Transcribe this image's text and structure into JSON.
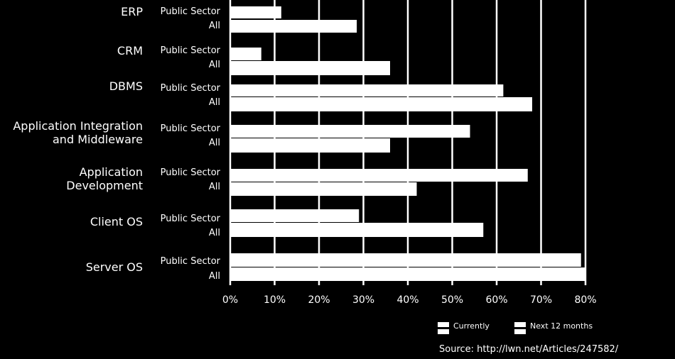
{
  "chart_data": {
    "type": "bar",
    "orientation": "horizontal",
    "categories": [
      "ERP",
      "CRM",
      "DBMS",
      "Application Integration and Middleware",
      "Application Development",
      "Client OS",
      "Server OS"
    ],
    "category_lines": [
      [
        "ERP"
      ],
      [
        "CRM"
      ],
      [
        "DBMS"
      ],
      [
        "Application Integration",
        "and Middleware"
      ],
      [
        "Application",
        "Development"
      ],
      [
        "Client OS"
      ],
      [
        "Server OS"
      ]
    ],
    "sub_labels": [
      "Public Sector",
      "All"
    ],
    "series": [
      {
        "name": "Currently",
        "values": {
          "Public Sector": [
            0,
            7,
            61.5,
            54,
            67,
            29,
            79
          ],
          "All": [
            0,
            0,
            0,
            0,
            0,
            0,
            0
          ]
        }
      },
      {
        "name": "Next 12 months",
        "values": {
          "Public Sector": [
            11.5,
            7,
            61.5,
            54,
            67,
            29,
            79
          ],
          "All": [
            28.5,
            36,
            68,
            36,
            42,
            57,
            80
          ]
        }
      }
    ],
    "xlim": [
      0,
      80
    ],
    "xticks": [
      "0%",
      "10%",
      "20%",
      "30%",
      "40%",
      "50%",
      "60%",
      "70%",
      "80%"
    ],
    "grid": true,
    "legend_position": "bottom-right"
  },
  "legend": [
    "Currently",
    "Next 12 months"
  ],
  "source": "Source: http://lwn.net/Articles/247582/",
  "colors": {
    "background": "#000000",
    "bars": "#ffffff",
    "grid": "#ffffff"
  }
}
